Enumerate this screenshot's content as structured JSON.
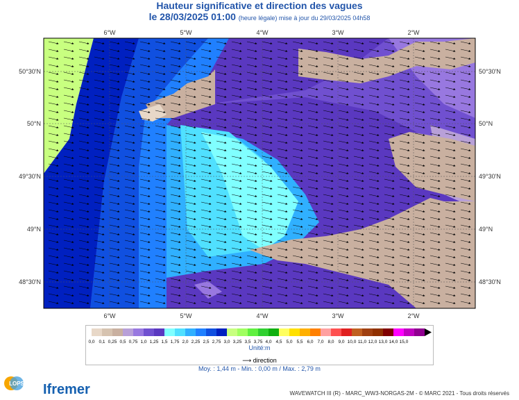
{
  "header": {
    "title": "Hauteur significative et direction des vagues",
    "date": "le 28/03/2025 01:00",
    "update_note": "(heure légale) mise à jour du 29/03/2025 04h58"
  },
  "axes": {
    "top_lon": [
      "6°W",
      "5°W",
      "4°W",
      "3°W",
      "2°W"
    ],
    "bottom_lon": [
      "6°W",
      "5°W",
      "4°W",
      "3°W",
      "2°W"
    ],
    "left_lat": [
      "50°30'N",
      "50°N",
      "49°30'N",
      "49°N",
      "48°30'N"
    ],
    "right_lat": [
      "50°30'N",
      "50°N",
      "49°30'N",
      "49°N",
      "48°30'N"
    ]
  },
  "legend": {
    "colors": [
      "#e8d8c8",
      "#d6c3b0",
      "#c9b0a0",
      "#b8a0d8",
      "#9878e0",
      "#7050d0",
      "#5a38c0",
      "#80ffff",
      "#50e0ff",
      "#30b0ff",
      "#2080ff",
      "#1050e0",
      "#0020c0",
      "#c8ff80",
      "#a0ff60",
      "#60f040",
      "#30d030",
      "#10b010",
      "#ffff60",
      "#ffe000",
      "#ffb000",
      "#ff8000",
      "#ffa0a0",
      "#ff5050",
      "#e02020",
      "#c06020",
      "#a04010",
      "#903000",
      "#800000",
      "#ff00ff",
      "#c000c0",
      "#900090"
    ],
    "labels": [
      "0,0",
      "0,1",
      "0,25",
      "0,5",
      "0,75",
      "1,0",
      "1,25",
      "1,5",
      "1,75",
      "2,0",
      "2,25",
      "2,5",
      "2,75",
      "3,0",
      "3,25",
      "3,5",
      "3,75",
      "4,0",
      "4,5",
      "5,0",
      "5,5",
      "6,0",
      "7,0",
      "8,0",
      "9,0",
      "10,0",
      "11,0",
      "12,0",
      "13,0",
      "14,0",
      "15,0"
    ],
    "unit": "Unité:m",
    "direction_label": "direction",
    "stats": "Moy. : 1,44 m   -   Min. : 0,00 m / Max. : 2,79 m"
  },
  "footer": {
    "credits": "WAVEWATCH III (R) - MARC_WW3-NORGAS-2M - © MARC 2021 - Tous droits réservés",
    "logo_lops": "LOPS",
    "logo_ifremer": "Ifremer"
  }
}
